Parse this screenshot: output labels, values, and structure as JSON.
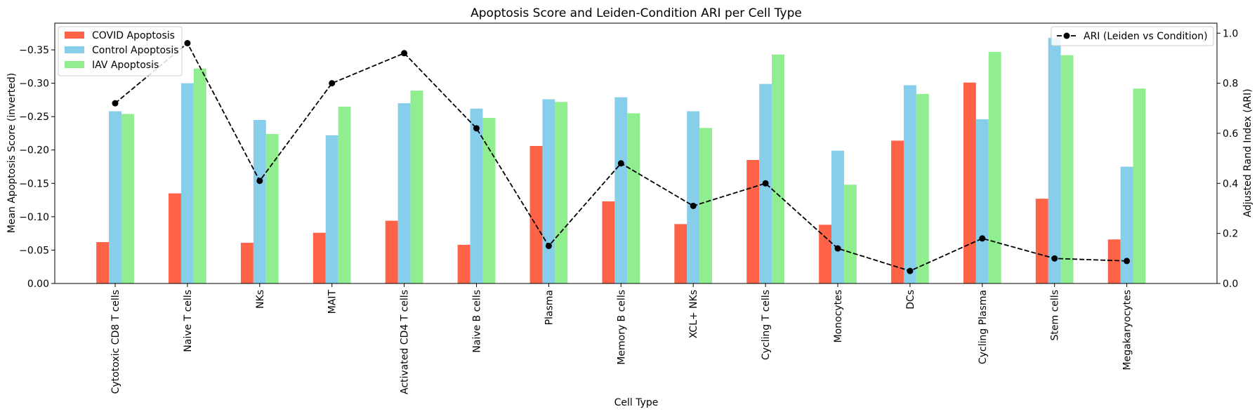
{
  "chart_data": {
    "type": "bar",
    "title": "Apoptosis Score and Leiden-Condition ARI per Cell Type",
    "xlabel": "Cell Type",
    "ylabel": "Mean Apoptosis Score (inverted)",
    "y2label": "Adjusted Rand Index (ARI)",
    "ylim": [
      0.0,
      -0.39
    ],
    "y2lim": [
      0.0,
      1.04
    ],
    "yticks": [
      "0.00",
      "−0.05",
      "−0.10",
      "−0.15",
      "−0.20",
      "−0.25",
      "−0.30",
      "−0.35"
    ],
    "y2ticks": [
      "0.0",
      "0.2",
      "0.4",
      "0.6",
      "0.8",
      "1.0"
    ],
    "categories": [
      "Cytotoxic CD8 T cells",
      "Naive T cells",
      "NKs",
      "MAIT",
      "Activated CD4 T cells",
      "Naive B cells",
      "Plasma",
      "Memory B cells",
      "XCL+ NKs",
      "Cycling T cells",
      "Monocytes",
      "DCs",
      "Cycling Plasma",
      "Stem cells",
      "Megakaryocytes"
    ],
    "series": [
      {
        "name": "COVID Apoptosis",
        "color": "#ff6347",
        "values": [
          -0.062,
          -0.135,
          -0.061,
          -0.076,
          -0.094,
          -0.058,
          -0.206,
          -0.123,
          -0.089,
          -0.185,
          -0.088,
          -0.214,
          -0.301,
          -0.127,
          -0.066
        ]
      },
      {
        "name": "Control Apoptosis",
        "color": "#87ceeb",
        "values": [
          -0.258,
          -0.3,
          -0.245,
          -0.222,
          -0.27,
          -0.262,
          -0.276,
          -0.279,
          -0.258,
          -0.299,
          -0.199,
          -0.297,
          -0.246,
          -0.368,
          -0.175
        ]
      },
      {
        "name": "IAV Apoptosis",
        "color": "#90ee90",
        "values": [
          -0.254,
          -0.322,
          -0.224,
          -0.265,
          -0.289,
          -0.248,
          -0.272,
          -0.255,
          -0.233,
          -0.343,
          -0.148,
          -0.284,
          -0.347,
          -0.342,
          -0.292
        ]
      }
    ],
    "line_series": {
      "name": "ARI (Leiden vs Condition)",
      "color": "#000000",
      "values": [
        0.72,
        0.96,
        0.41,
        0.8,
        0.92,
        0.62,
        0.15,
        0.48,
        0.31,
        0.4,
        0.14,
        0.05,
        0.18,
        0.1,
        0.09
      ]
    },
    "legend_left_position": "upper-left",
    "legend_right_position": "upper-right",
    "grid": false
  }
}
